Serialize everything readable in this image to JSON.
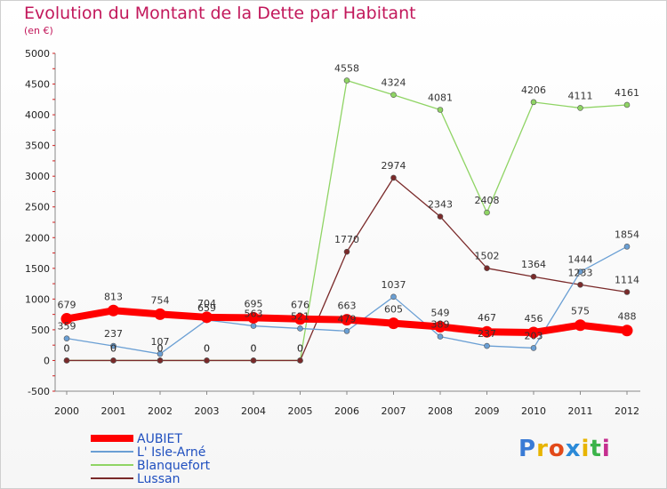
{
  "chart_data": {
    "type": "line",
    "title": "Evolution du Montant de la Dette par Habitant",
    "subtitle": "(en €)",
    "x": [
      "2000",
      "2001",
      "2002",
      "2003",
      "2004",
      "2005",
      "2006",
      "2007",
      "2008",
      "2009",
      "2010",
      "2011",
      "2012"
    ],
    "ylim": [
      -500,
      5000
    ],
    "yticks": [
      -500,
      0,
      500,
      1000,
      1500,
      2000,
      2500,
      3000,
      3500,
      4000,
      4500,
      5000
    ],
    "grid": false,
    "legend_position": "bottom-left",
    "series": [
      {
        "name": "AUBIET",
        "color": "#ff0000",
        "values": [
          679,
          813,
          754,
          704,
          695,
          676,
          663,
          605,
          549,
          467,
          456,
          575,
          488
        ]
      },
      {
        "name": "L' Isle-Arné",
        "color": "#6a9fd4",
        "values": [
          359,
          237,
          107,
          659,
          563,
          521,
          479,
          1037,
          389,
          237,
          203,
          1444,
          1854
        ]
      },
      {
        "name": "Blanquefort",
        "color": "#8fd464",
        "values": [
          0,
          0,
          0,
          0,
          0,
          0,
          4558,
          4324,
          4081,
          2408,
          4206,
          4111,
          4161
        ]
      },
      {
        "name": "Lussan",
        "color": "#7a2a2a",
        "values": [
          0,
          0,
          0,
          0,
          0,
          0,
          1770,
          2974,
          2343,
          1502,
          1364,
          1233,
          1114
        ]
      }
    ]
  },
  "logo": {
    "letters": [
      "P",
      "r",
      "o",
      "x",
      "i",
      "t",
      "i"
    ],
    "colors": [
      "#3a7bd5",
      "#e8b400",
      "#e24a1a",
      "#2b8ad8",
      "#e8b400",
      "#3bb34a",
      "#c52f8f"
    ]
  }
}
